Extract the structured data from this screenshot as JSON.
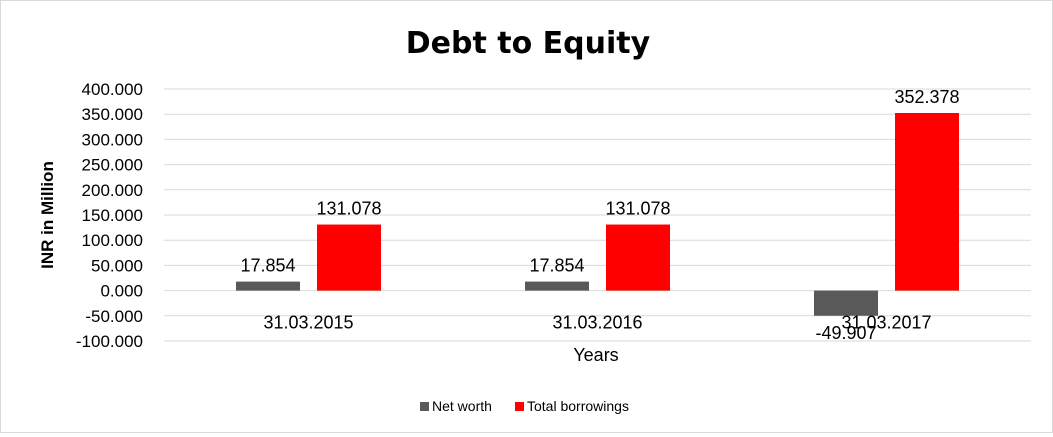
{
  "chart_data": {
    "type": "bar",
    "title": "Debt to Equity",
    "xlabel": "Years",
    "ylabel": "INR in Million",
    "categories": [
      "31.03.2015",
      "31.03.2016",
      "31.03.2017"
    ],
    "series": [
      {
        "name": "Net worth",
        "values": [
          17.854,
          17.854,
          -49.907
        ],
        "color": "#595959"
      },
      {
        "name": "Total borrowings",
        "values": [
          131.078,
          131.078,
          352.378
        ],
        "color": "#ff0000"
      }
    ],
    "ylim": [
      -100,
      400
    ],
    "yticks": [
      "400.000",
      "350.000",
      "300.000",
      "250.000",
      "200.000",
      "150.000",
      "100.000",
      "50.000",
      "0.000",
      "-50.000",
      "-100.000"
    ],
    "data_labels": [
      [
        "17.854",
        "17.854",
        "-49.907"
      ],
      [
        "131.078",
        "131.078",
        "352.378"
      ]
    ],
    "legend_labels": [
      "Net worth",
      "Total borrowings"
    ],
    "grid": true,
    "legend_position": "bottom"
  }
}
